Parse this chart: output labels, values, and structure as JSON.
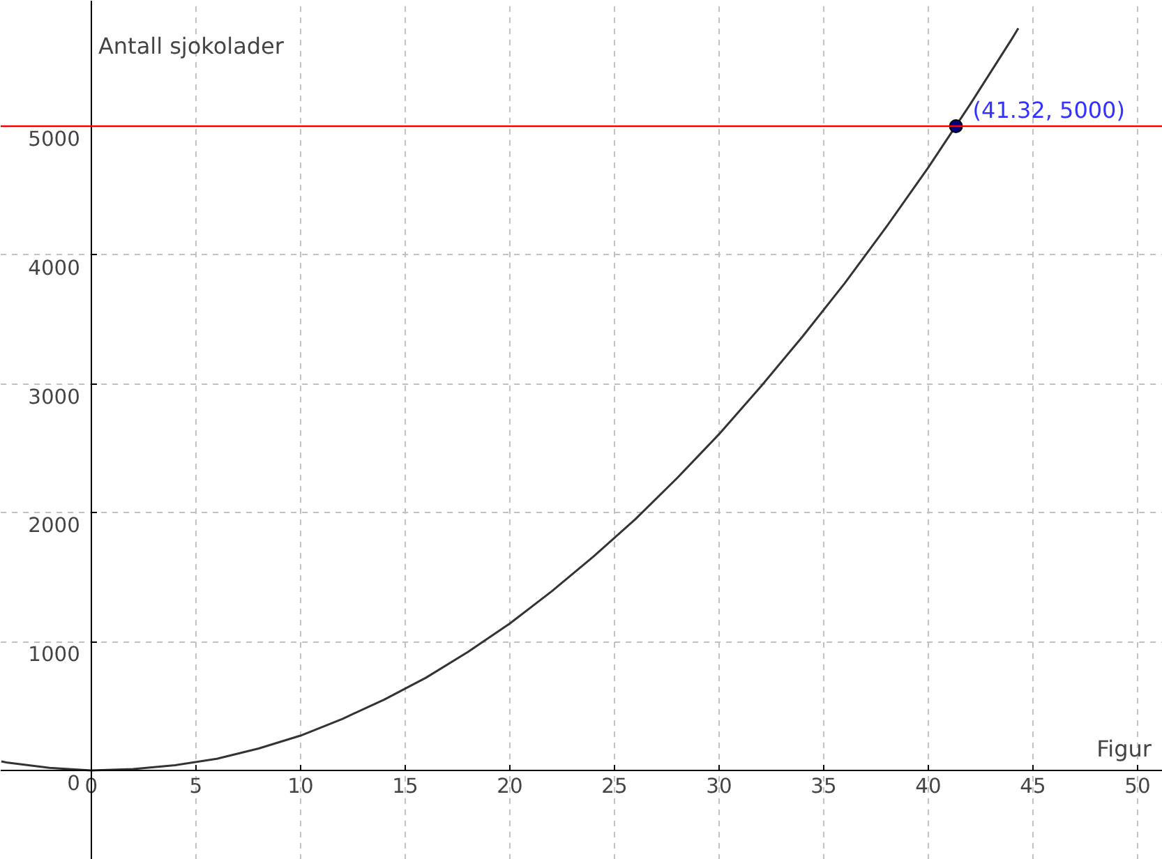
{
  "chart_data": {
    "type": "line",
    "xlabel": "Figur",
    "ylabel": "Antall sjokolader",
    "xlim": [
      -4.33,
      51.2
    ],
    "ylim": [
      -693,
      5974
    ],
    "xticks": [
      0,
      5,
      10,
      15,
      20,
      25,
      30,
      35,
      40,
      45,
      50
    ],
    "yticks": [
      0,
      1000,
      2000,
      3000,
      4000,
      5000
    ],
    "grid": true,
    "line_style": "solid",
    "series": [
      {
        "color": "#333333",
        "x": [
          -4.3,
          -4,
          -2,
          0,
          2,
          4,
          6,
          8,
          10,
          12,
          14,
          16,
          18,
          20,
          22,
          24,
          26,
          28,
          30,
          32,
          34,
          36,
          38,
          40,
          42,
          44,
          44.3
        ],
        "values": [
          70,
          60,
          20,
          0,
          10,
          40,
          90,
          170,
          270,
          400,
          550,
          720,
          920,
          1140,
          1390,
          1660,
          1950,
          2270,
          2610,
          2980,
          3370,
          3780,
          4220,
          4680,
          5170,
          5680,
          5760
        ]
      },
      {
        "type": "scatter",
        "color": "#00007f",
        "marker": "circle",
        "x": [
          41.32
        ],
        "values": [
          5000
        ]
      }
    ],
    "ref_lines": [
      {
        "axis": "y",
        "value": 5000,
        "color": "#ff0000",
        "line_style": "solid"
      }
    ],
    "annotations": [
      {
        "text": "(41.32, 5000)",
        "x": 41.32,
        "y": 5000
      }
    ]
  }
}
